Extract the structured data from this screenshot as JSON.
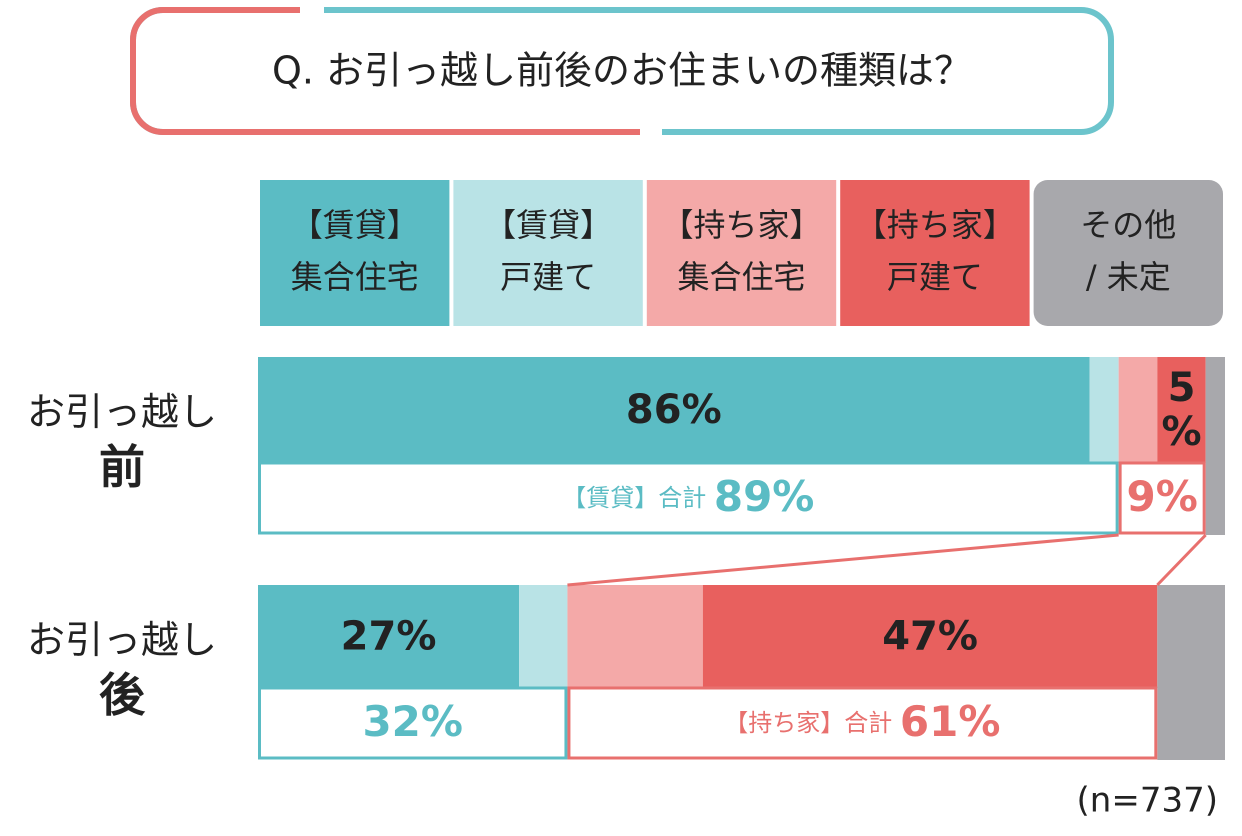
{
  "title": "Q. お引っ越し前後のお住まいの種類は？",
  "note": "(n=737)",
  "chart_data": {
    "type": "stacked_bar",
    "categories": [
      "お引っ越し\n前",
      "お引っ越し\n後"
    ],
    "xlim": [
      0,
      100
    ],
    "series": [
      {
        "name": "【賃貸】\n集合住宅",
        "color": "#5bbcc4",
        "values": [
          86,
          27
        ],
        "value_labels": [
          "86%",
          "27%"
        ]
      },
      {
        "name": "【賃貸】\n戸建て",
        "color": "#b9e3e6",
        "values": [
          3,
          5
        ],
        "value_labels": [
          null,
          null
        ]
      },
      {
        "name": "【持ち家】\n集合住宅",
        "color": "#f4a9a8",
        "values": [
          4,
          14
        ],
        "value_labels": [
          null,
          null
        ]
      },
      {
        "name": "【持ち家】\n戸建て",
        "color": "#e8605e",
        "values": [
          5,
          47
        ],
        "value_labels": [
          "5\n%",
          "47%"
        ]
      },
      {
        "name": "その他\n/ 未定",
        "color": "#a8a8ac",
        "values": [
          2,
          7
        ],
        "value_labels": [
          null,
          null
        ]
      }
    ],
    "totals": [
      {
        "color": "#5bbcc4",
        "values": [
          89,
          32
        ],
        "value_labels": [
          "89%",
          "32%"
        ],
        "labels": [
          "【賃貸】合計",
          null
        ]
      },
      {
        "color": "#e8706e",
        "values": [
          9,
          61
        ],
        "value_labels": [
          "9%",
          "61%"
        ],
        "labels": [
          null,
          "【持ち家】合計"
        ]
      }
    ]
  }
}
